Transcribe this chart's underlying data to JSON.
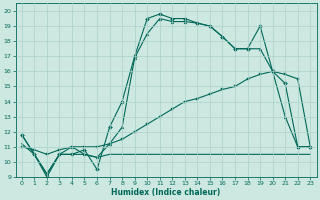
{
  "title": "",
  "xlabel": "Humidex (Indice chaleur)",
  "ylabel": "",
  "xlim": [
    -0.5,
    23.5
  ],
  "ylim": [
    9,
    20.5
  ],
  "yticks": [
    9,
    10,
    11,
    12,
    13,
    14,
    15,
    16,
    17,
    18,
    19,
    20
  ],
  "xticks": [
    0,
    1,
    2,
    3,
    4,
    5,
    6,
    7,
    8,
    9,
    10,
    11,
    12,
    13,
    14,
    15,
    16,
    17,
    18,
    19,
    20,
    21,
    22,
    23
  ],
  "bg_color": "#cce8e0",
  "grid_color": "#aad0c8",
  "line_color": "#006858",
  "lines": [
    {
      "x": [
        0,
        1,
        2,
        3,
        4,
        5,
        6,
        7,
        8,
        9,
        10,
        11,
        12,
        13,
        14,
        15,
        16,
        17,
        18,
        19,
        20,
        21,
        22,
        23
      ],
      "y": [
        11.8,
        10.5,
        9.0,
        10.5,
        10.5,
        10.8,
        9.5,
        12.3,
        14.0,
        17.0,
        19.5,
        19.8,
        19.5,
        19.5,
        19.2,
        19.0,
        18.3,
        17.5,
        17.5,
        19.0,
        16.0,
        15.2,
        11.0,
        11.0
      ],
      "marker": "D",
      "markersize": 2.0,
      "linewidth": 0.8
    },
    {
      "x": [
        0,
        1,
        2,
        3,
        4,
        5,
        6,
        7,
        8,
        9,
        10,
        11,
        12,
        13,
        14,
        15,
        16,
        17,
        18,
        19,
        20,
        21,
        22,
        23
      ],
      "y": [
        11.8,
        10.5,
        9.2,
        10.5,
        11.0,
        10.5,
        10.3,
        11.2,
        12.3,
        16.9,
        18.5,
        19.5,
        19.3,
        19.3,
        19.2,
        19.0,
        18.3,
        17.5,
        17.5,
        17.5,
        16.0,
        13.0,
        11.0,
        11.0
      ],
      "marker": "^",
      "markersize": 2.0,
      "linewidth": 0.8
    },
    {
      "x": [
        0,
        1,
        2,
        3,
        4,
        5,
        6,
        7,
        8,
        9,
        10,
        11,
        12,
        13,
        14,
        15,
        16,
        17,
        18,
        19,
        20,
        21,
        22,
        23
      ],
      "y": [
        11.0,
        10.8,
        10.5,
        10.8,
        11.0,
        11.0,
        11.0,
        11.2,
        11.5,
        12.0,
        12.5,
        13.0,
        13.5,
        14.0,
        14.2,
        14.5,
        14.8,
        15.0,
        15.5,
        15.8,
        16.0,
        15.8,
        15.5,
        11.0
      ],
      "marker": "s",
      "markersize": 2.0,
      "linewidth": 0.8
    },
    {
      "x": [
        0,
        1,
        2,
        3,
        4,
        5,
        6,
        7,
        8,
        9,
        10,
        11,
        12,
        13,
        14,
        15,
        16,
        17,
        18,
        19,
        20,
        21,
        22,
        23
      ],
      "y": [
        11.2,
        10.5,
        9.2,
        10.5,
        10.5,
        10.5,
        10.3,
        10.5,
        10.5,
        10.5,
        10.5,
        10.5,
        10.5,
        10.5,
        10.5,
        10.5,
        10.5,
        10.5,
        10.5,
        10.5,
        10.5,
        10.5,
        10.5,
        10.5
      ],
      "marker": null,
      "markersize": 0,
      "linewidth": 0.8
    }
  ]
}
